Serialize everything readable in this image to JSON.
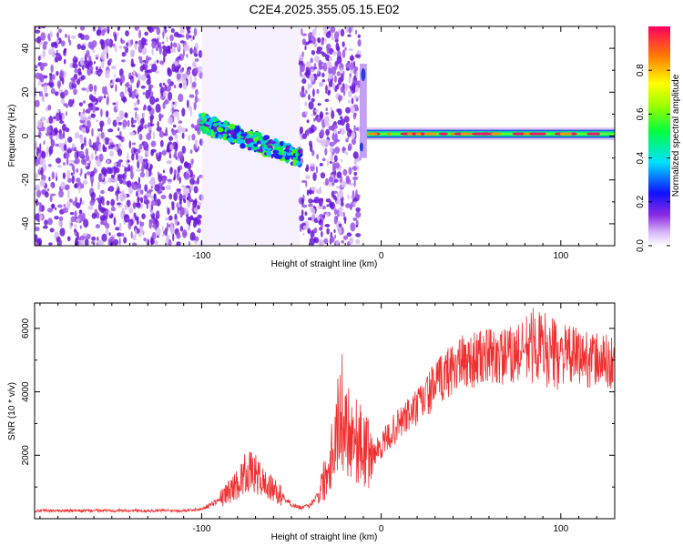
{
  "title": "C2E4.2025.355.05.15.E02",
  "chart_data": [
    {
      "type": "heatmap",
      "name": "spectrogram",
      "xlabel": "Height of straight line (km)",
      "ylabel": "Frequency (Hz)",
      "xlim": [
        -193,
        130
      ],
      "ylim": [
        -50,
        50
      ],
      "x_ticks": [
        -100,
        0,
        100
      ],
      "y_ticks": [
        -40,
        -20,
        0,
        20,
        40
      ],
      "colorbar": {
        "label": "Normalized spectral amplitude",
        "range": [
          0,
          1
        ],
        "ticks": [
          0.0,
          0.2,
          0.4,
          0.6,
          0.8
        ],
        "tick_labels": [
          "0.0",
          "0.2",
          "0.4",
          "0.6",
          "0.8"
        ]
      },
      "regions": [
        {
          "x": [
            -193,
            -100
          ],
          "description": "broadband noise",
          "amplitude": 0.15
        },
        {
          "x": [
            -100,
            -45
          ],
          "frequency_trend": [
            6,
            -10
          ],
          "amplitude": 0.35
        },
        {
          "x": [
            -45,
            -12
          ],
          "description": "broadband noise",
          "amplitude": 0.15
        },
        {
          "x": [
            -12,
            -8
          ],
          "description": "transient",
          "frequency_range": [
            -10,
            33
          ]
        },
        {
          "x": [
            -8,
            130
          ],
          "frequency": 1,
          "amplitude": 0.85
        }
      ]
    },
    {
      "type": "line",
      "name": "snr",
      "xlabel": "Height of straight line (km)",
      "ylabel": "SNR (10 * v/v)",
      "xlim": [
        -193,
        130
      ],
      "ylim": [
        0,
        6800
      ],
      "x_ticks": [
        -100,
        0,
        100
      ],
      "y_ticks": [
        2000,
        4000,
        6000
      ],
      "color": "#f03030",
      "series": [
        {
          "name": "SNR",
          "x": [
            -193,
            -170,
            -150,
            -130,
            -110,
            -100,
            -90,
            -80,
            -75,
            -70,
            -65,
            -60,
            -55,
            -50,
            -45,
            -40,
            -35,
            -30,
            -25,
            -22,
            -20,
            -15,
            -10,
            -5,
            0,
            10,
            20,
            30,
            40,
            50,
            60,
            70,
            80,
            85,
            90,
            95,
            100,
            110,
            120,
            130
          ],
          "y": [
            250,
            250,
            260,
            250,
            260,
            300,
            600,
            1100,
            1500,
            1400,
            1100,
            900,
            700,
            450,
            350,
            400,
            800,
            1500,
            2800,
            3400,
            3000,
            2600,
            2200,
            2000,
            2300,
            3000,
            3500,
            4200,
            4800,
            5000,
            5100,
            5100,
            5300,
            5500,
            5400,
            5200,
            5200,
            5100,
            5000,
            4900
          ]
        }
      ]
    }
  ]
}
